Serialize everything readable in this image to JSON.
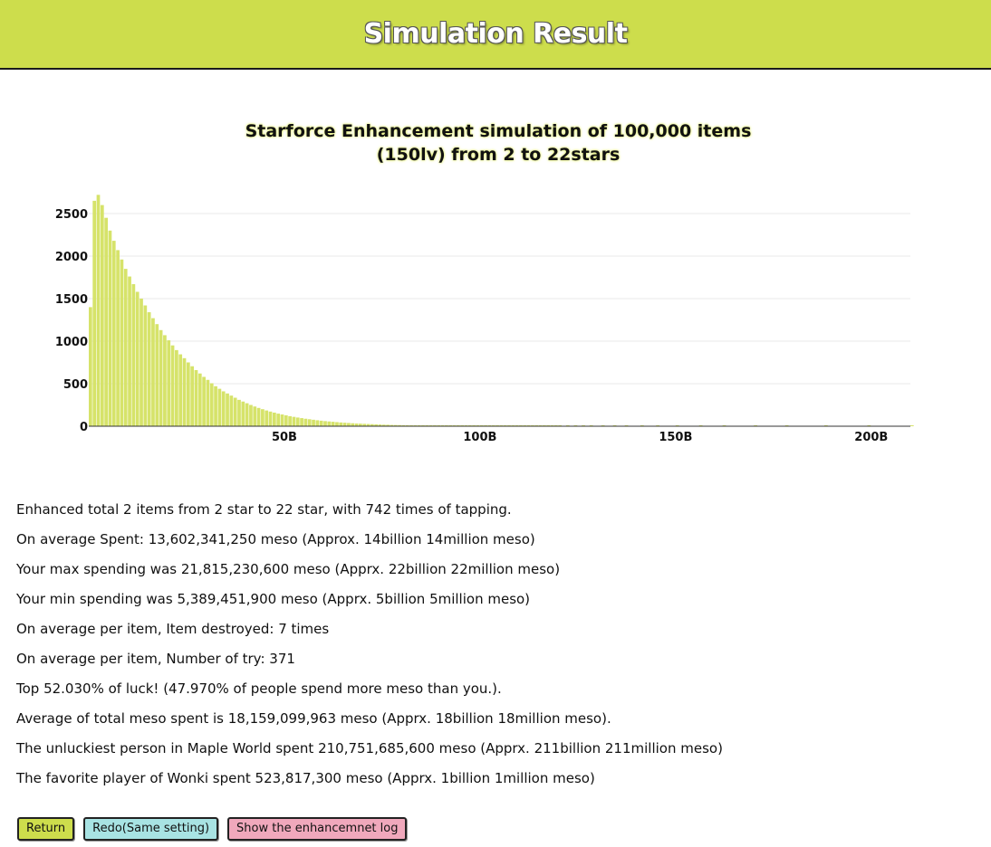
{
  "header": {
    "title": "Simulation Result"
  },
  "chart_data": {
    "type": "bar",
    "title_line1": "Starforce Enhancement simulation of 100,000 items",
    "title_line2": "(150lv) from 2 to 22stars",
    "x_unit": "billion meso",
    "xlim": [
      0,
      210
    ],
    "ylim": [
      0,
      2500
    ],
    "y_ticks": [
      "0",
      "500",
      "1000",
      "1500",
      "2000",
      "2500"
    ],
    "x_ticks": [
      {
        "value": 50,
        "label": "50B"
      },
      {
        "value": 100,
        "label": "100B"
      },
      {
        "value": 150,
        "label": "150B"
      },
      {
        "value": 200,
        "label": "200B"
      }
    ],
    "grid": true,
    "bar_color": "#d6e36a",
    "bins": [
      {
        "x_start": 0.0,
        "x_end": 1.0,
        "y": 1400
      },
      {
        "x_start": 1.0,
        "x_end": 2.0,
        "y": 2650
      },
      {
        "x_start": 2.0,
        "x_end": 3.0,
        "y": 2720
      },
      {
        "x_start": 3.0,
        "x_end": 4.0,
        "y": 2600
      },
      {
        "x_start": 4.0,
        "x_end": 5.0,
        "y": 2450
      },
      {
        "x_start": 5.0,
        "x_end": 6.0,
        "y": 2300
      },
      {
        "x_start": 6.0,
        "x_end": 7.0,
        "y": 2180
      },
      {
        "x_start": 7.0,
        "x_end": 8.0,
        "y": 2070
      },
      {
        "x_start": 8.0,
        "x_end": 9.0,
        "y": 1960
      },
      {
        "x_start": 9.0,
        "x_end": 10.0,
        "y": 1850
      },
      {
        "x_start": 10.0,
        "x_end": 11.0,
        "y": 1760
      },
      {
        "x_start": 11.0,
        "x_end": 12.0,
        "y": 1670
      },
      {
        "x_start": 12.0,
        "x_end": 13.0,
        "y": 1580
      },
      {
        "x_start": 13.0,
        "x_end": 14.0,
        "y": 1500
      },
      {
        "x_start": 14.0,
        "x_end": 15.0,
        "y": 1420
      },
      {
        "x_start": 15.0,
        "x_end": 16.0,
        "y": 1340
      },
      {
        "x_start": 16.0,
        "x_end": 17.0,
        "y": 1270
      },
      {
        "x_start": 17.0,
        "x_end": 18.0,
        "y": 1200
      },
      {
        "x_start": 18.0,
        "x_end": 19.0,
        "y": 1130
      },
      {
        "x_start": 19.0,
        "x_end": 20.0,
        "y": 1070
      },
      {
        "x_start": 20.0,
        "x_end": 21.0,
        "y": 1010
      },
      {
        "x_start": 21.0,
        "x_end": 22.0,
        "y": 950
      },
      {
        "x_start": 22.0,
        "x_end": 23.0,
        "y": 895
      },
      {
        "x_start": 23.0,
        "x_end": 24.0,
        "y": 845
      },
      {
        "x_start": 24.0,
        "x_end": 25.0,
        "y": 800
      },
      {
        "x_start": 25.0,
        "x_end": 26.0,
        "y": 750
      },
      {
        "x_start": 26.0,
        "x_end": 27.0,
        "y": 705
      },
      {
        "x_start": 27.0,
        "x_end": 28.0,
        "y": 660
      },
      {
        "x_start": 28.0,
        "x_end": 29.0,
        "y": 620
      },
      {
        "x_start": 29.0,
        "x_end": 30.0,
        "y": 580
      },
      {
        "x_start": 30.0,
        "x_end": 31.0,
        "y": 545
      },
      {
        "x_start": 31.0,
        "x_end": 32.0,
        "y": 505
      },
      {
        "x_start": 32.0,
        "x_end": 33.0,
        "y": 470
      },
      {
        "x_start": 33.0,
        "x_end": 34.0,
        "y": 440
      },
      {
        "x_start": 34.0,
        "x_end": 35.0,
        "y": 410
      },
      {
        "x_start": 35.0,
        "x_end": 36.0,
        "y": 385
      },
      {
        "x_start": 36.0,
        "x_end": 37.0,
        "y": 360
      },
      {
        "x_start": 37.0,
        "x_end": 38.0,
        "y": 335
      },
      {
        "x_start": 38.0,
        "x_end": 39.0,
        "y": 310
      },
      {
        "x_start": 39.0,
        "x_end": 40.0,
        "y": 290
      },
      {
        "x_start": 40.0,
        "x_end": 41.0,
        "y": 270
      },
      {
        "x_start": 41.0,
        "x_end": 42.0,
        "y": 250
      },
      {
        "x_start": 42.0,
        "x_end": 43.0,
        "y": 232
      },
      {
        "x_start": 43.0,
        "x_end": 44.0,
        "y": 215
      },
      {
        "x_start": 44.0,
        "x_end": 45.0,
        "y": 200
      },
      {
        "x_start": 45.0,
        "x_end": 46.0,
        "y": 185
      },
      {
        "x_start": 46.0,
        "x_end": 47.0,
        "y": 172
      },
      {
        "x_start": 47.0,
        "x_end": 48.0,
        "y": 160
      },
      {
        "x_start": 48.0,
        "x_end": 49.0,
        "y": 148
      },
      {
        "x_start": 49.0,
        "x_end": 50.0,
        "y": 138
      },
      {
        "x_start": 50.0,
        "x_end": 51.0,
        "y": 128
      },
      {
        "x_start": 51.0,
        "x_end": 52.0,
        "y": 118
      },
      {
        "x_start": 52.0,
        "x_end": 53.0,
        "y": 110
      },
      {
        "x_start": 53.0,
        "x_end": 54.0,
        "y": 102
      },
      {
        "x_start": 54.0,
        "x_end": 55.0,
        "y": 95
      },
      {
        "x_start": 55.0,
        "x_end": 56.0,
        "y": 88
      },
      {
        "x_start": 56.0,
        "x_end": 57.0,
        "y": 82
      },
      {
        "x_start": 57.0,
        "x_end": 58.0,
        "y": 76
      },
      {
        "x_start": 58.0,
        "x_end": 59.0,
        "y": 70
      },
      {
        "x_start": 59.0,
        "x_end": 60.0,
        "y": 65
      },
      {
        "x_start": 60.0,
        "x_end": 61.0,
        "y": 60
      },
      {
        "x_start": 61.0,
        "x_end": 62.0,
        "y": 56
      },
      {
        "x_start": 62.0,
        "x_end": 63.0,
        "y": 52
      },
      {
        "x_start": 63.0,
        "x_end": 64.0,
        "y": 48
      },
      {
        "x_start": 64.0,
        "x_end": 65.0,
        "y": 44
      },
      {
        "x_start": 65.0,
        "x_end": 66.0,
        "y": 41
      },
      {
        "x_start": 66.0,
        "x_end": 67.0,
        "y": 38
      },
      {
        "x_start": 67.0,
        "x_end": 68.0,
        "y": 35
      },
      {
        "x_start": 68.0,
        "x_end": 69.0,
        "y": 32
      },
      {
        "x_start": 69.0,
        "x_end": 70.0,
        "y": 30
      },
      {
        "x_start": 70.0,
        "x_end": 71.0,
        "y": 28
      },
      {
        "x_start": 71.0,
        "x_end": 72.0,
        "y": 26
      },
      {
        "x_start": 72.0,
        "x_end": 73.0,
        "y": 24
      },
      {
        "x_start": 73.0,
        "x_end": 74.0,
        "y": 22
      },
      {
        "x_start": 74.0,
        "x_end": 75.0,
        "y": 20
      },
      {
        "x_start": 75.0,
        "x_end": 76.0,
        "y": 18
      },
      {
        "x_start": 76.0,
        "x_end": 77.0,
        "y": 17
      },
      {
        "x_start": 77.0,
        "x_end": 78.0,
        "y": 15
      },
      {
        "x_start": 78.0,
        "x_end": 79.0,
        "y": 14
      },
      {
        "x_start": 79.0,
        "x_end": 80.0,
        "y": 13
      },
      {
        "x_start": 80.0,
        "x_end": 81.0,
        "y": 12
      },
      {
        "x_start": 81.0,
        "x_end": 82.0,
        "y": 11
      },
      {
        "x_start": 82.0,
        "x_end": 83.0,
        "y": 10
      },
      {
        "x_start": 83.0,
        "x_end": 84.0,
        "y": 9
      },
      {
        "x_start": 84.0,
        "x_end": 85.0,
        "y": 8
      },
      {
        "x_start": 85.0,
        "x_end": 86.0,
        "y": 8
      },
      {
        "x_start": 86.0,
        "x_end": 87.0,
        "y": 7
      },
      {
        "x_start": 87.0,
        "x_end": 88.0,
        "y": 6
      },
      {
        "x_start": 88.0,
        "x_end": 89.0,
        "y": 6
      },
      {
        "x_start": 89.0,
        "x_end": 90.0,
        "y": 5
      },
      {
        "x_start": 90.0,
        "x_end": 91.0,
        "y": 5
      },
      {
        "x_start": 91.0,
        "x_end": 92.0,
        "y": 5
      },
      {
        "x_start": 92.0,
        "x_end": 93.0,
        "y": 4
      },
      {
        "x_start": 93.0,
        "x_end": 94.0,
        "y": 4
      },
      {
        "x_start": 94.0,
        "x_end": 95.0,
        "y": 4
      },
      {
        "x_start": 95.0,
        "x_end": 96.0,
        "y": 3
      },
      {
        "x_start": 96.0,
        "x_end": 97.0,
        "y": 3
      },
      {
        "x_start": 97.0,
        "x_end": 98.0,
        "y": 3
      },
      {
        "x_start": 98.0,
        "x_end": 99.0,
        "y": 3
      },
      {
        "x_start": 99.0,
        "x_end": 100.0,
        "y": 2
      },
      {
        "x_start": 100.0,
        "x_end": 101.0,
        "y": 2
      },
      {
        "x_start": 101.0,
        "x_end": 102.0,
        "y": 2
      },
      {
        "x_start": 102.0,
        "x_end": 103.0,
        "y": 2
      },
      {
        "x_start": 103.0,
        "x_end": 104.0,
        "y": 2
      },
      {
        "x_start": 104.0,
        "x_end": 105.0,
        "y": 2
      },
      {
        "x_start": 105.0,
        "x_end": 106.0,
        "y": 2
      },
      {
        "x_start": 106.0,
        "x_end": 107.0,
        "y": 1
      },
      {
        "x_start": 107.0,
        "x_end": 108.0,
        "y": 1
      },
      {
        "x_start": 108.0,
        "x_end": 109.0,
        "y": 1
      },
      {
        "x_start": 109.0,
        "x_end": 110.0,
        "y": 1
      },
      {
        "x_start": 110.0,
        "x_end": 111.0,
        "y": 1
      },
      {
        "x_start": 111.0,
        "x_end": 112.0,
        "y": 1
      },
      {
        "x_start": 112.0,
        "x_end": 113.0,
        "y": 1
      },
      {
        "x_start": 113.0,
        "x_end": 114.0,
        "y": 1
      },
      {
        "x_start": 114.0,
        "x_end": 115.0,
        "y": 1
      },
      {
        "x_start": 115.0,
        "x_end": 116.0,
        "y": 1
      },
      {
        "x_start": 116.0,
        "x_end": 117.0,
        "y": 1
      },
      {
        "x_start": 117.0,
        "x_end": 118.0,
        "y": 1
      },
      {
        "x_start": 118.0,
        "x_end": 119.0,
        "y": 1
      },
      {
        "x_start": 119.0,
        "x_end": 120.0,
        "y": 1
      },
      {
        "x_start": 120.0,
        "x_end": 121.0,
        "y": 1
      },
      {
        "x_start": 122.0,
        "x_end": 123.0,
        "y": 1
      },
      {
        "x_start": 124.0,
        "x_end": 125.0,
        "y": 1
      },
      {
        "x_start": 126.0,
        "x_end": 127.0,
        "y": 1
      },
      {
        "x_start": 128.0,
        "x_end": 129.0,
        "y": 1
      },
      {
        "x_start": 131.0,
        "x_end": 132.0,
        "y": 1
      },
      {
        "x_start": 134.0,
        "x_end": 135.0,
        "y": 1
      },
      {
        "x_start": 137.0,
        "x_end": 138.0,
        "y": 1
      },
      {
        "x_start": 141.0,
        "x_end": 142.0,
        "y": 1
      },
      {
        "x_start": 145.0,
        "x_end": 146.0,
        "y": 1
      },
      {
        "x_start": 150.0,
        "x_end": 151.0,
        "y": 1
      },
      {
        "x_start": 156.0,
        "x_end": 157.0,
        "y": 1
      },
      {
        "x_start": 162.0,
        "x_end": 163.0,
        "y": 1
      },
      {
        "x_start": 170.0,
        "x_end": 171.0,
        "y": 1
      },
      {
        "x_start": 178.0,
        "x_end": 179.0,
        "y": 1
      },
      {
        "x_start": 188.0,
        "x_end": 189.0,
        "y": 1
      },
      {
        "x_start": 199.0,
        "x_end": 200.0,
        "y": 1
      },
      {
        "x_start": 210.0,
        "x_end": 211.0,
        "y": 1
      }
    ]
  },
  "stats": [
    "Enhanced total 2 items from 2 star to 22 star, with 742 times of tapping.",
    "On average Spent: 13,602,341,250 meso (Approx. 14billion 14million meso)",
    "Your max spending was 21,815,230,600 meso (Apprx. 22billion 22million meso)",
    "Your min spending was 5,389,451,900 meso (Apprx. 5billion 5million meso)",
    "On average per item, Item destroyed: 7 times",
    "On average per item, Number of try: 371",
    "Top 52.030% of luck! (47.970% of people spend more meso than you.).",
    "Average of total meso spent is 18,159,099,963 meso (Apprx. 18billion 18million meso).",
    "The unluckiest person in Maple World spent 210,751,685,600 meso (Apprx. 211billion 211million meso)",
    "The favorite player of Wonki spent 523,817,300 meso (Apprx. 1billion 1million meso)"
  ],
  "buttons": {
    "return_label": "Return",
    "redo_label": "Redo(Same setting)",
    "log_label": "Show the enhancemnet log"
  },
  "colors": {
    "header_bg": "#cddd4c",
    "bar": "#d6e36a",
    "redo_bg": "#a8e3e3",
    "log_bg": "#f0a8bc"
  }
}
